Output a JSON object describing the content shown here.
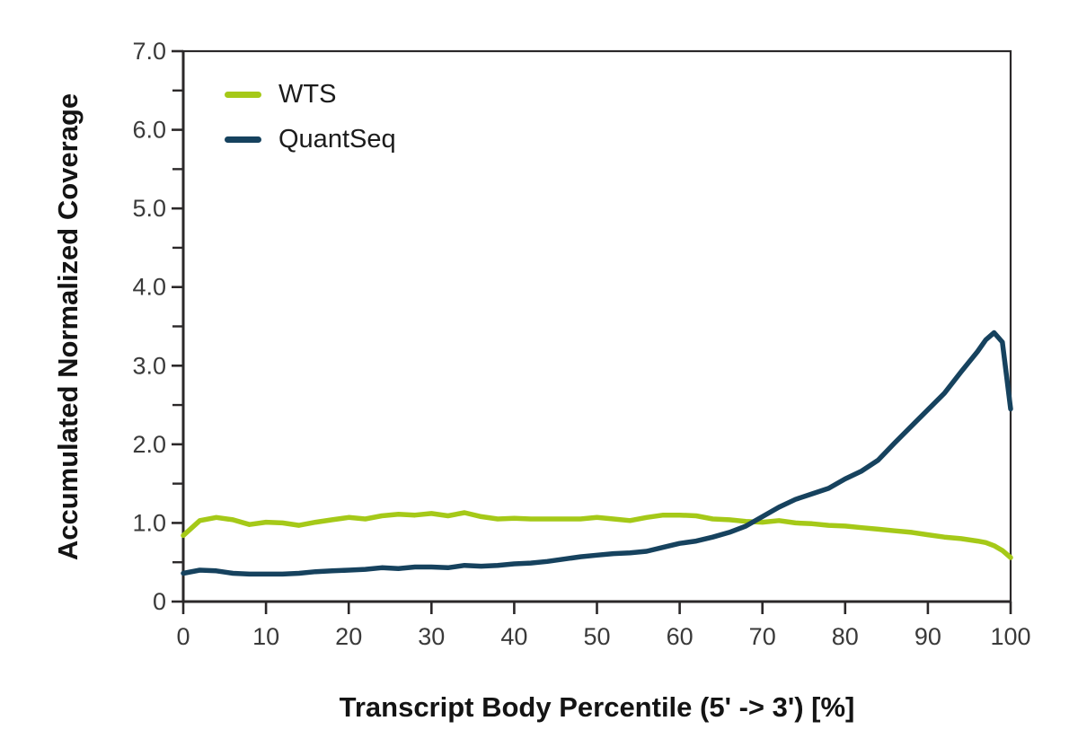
{
  "figure": {
    "background": "#ffffff",
    "axis_color": "#2b2829",
    "tick_label_color": "#3a3a3a",
    "title_color": "#141414"
  },
  "chart_data": {
    "type": "line",
    "title": "",
    "xlabel": "Transcript Body Percentile (5' -> 3') [%]",
    "ylabel": "Accumulated Normalized Coverage",
    "xlim": [
      0,
      100
    ],
    "ylim": [
      0,
      7
    ],
    "grid": false,
    "legend_position": "top-left-inside",
    "x_ticks": [
      0,
      10,
      20,
      30,
      40,
      50,
      60,
      70,
      80,
      90,
      100
    ],
    "y_ticks": [
      {
        "value": 0,
        "label": "0"
      },
      {
        "value": 1,
        "label": "1.0"
      },
      {
        "value": 2,
        "label": "2.0"
      },
      {
        "value": 3,
        "label": "3.0"
      },
      {
        "value": 4,
        "label": "4.0"
      },
      {
        "value": 5,
        "label": "5.0"
      },
      {
        "value": 6,
        "label": "6.0"
      },
      {
        "value": 7,
        "label": "7.0"
      }
    ],
    "y_minor_ticks": [
      0.5,
      1.5,
      2.5,
      3.5,
      4.5,
      5.5,
      6.5
    ],
    "x": [
      0,
      2,
      4,
      6,
      8,
      10,
      12,
      14,
      16,
      18,
      20,
      22,
      24,
      26,
      28,
      30,
      32,
      34,
      36,
      38,
      40,
      42,
      44,
      46,
      48,
      50,
      52,
      54,
      56,
      58,
      60,
      62,
      64,
      66,
      68,
      70,
      72,
      74,
      76,
      78,
      80,
      82,
      84,
      86,
      88,
      90,
      92,
      94,
      96,
      97,
      98,
      99,
      100
    ],
    "series": [
      {
        "name": "WTS",
        "color": "#a5c918",
        "y": [
          0.84,
          1.03,
          1.07,
          1.04,
          0.98,
          1.01,
          1.0,
          0.97,
          1.01,
          1.04,
          1.07,
          1.05,
          1.09,
          1.11,
          1.1,
          1.12,
          1.09,
          1.13,
          1.08,
          1.05,
          1.06,
          1.05,
          1.05,
          1.05,
          1.05,
          1.07,
          1.05,
          1.03,
          1.07,
          1.1,
          1.1,
          1.09,
          1.05,
          1.04,
          1.02,
          1.01,
          1.03,
          1.0,
          0.99,
          0.97,
          0.96,
          0.94,
          0.92,
          0.9,
          0.88,
          0.85,
          0.82,
          0.8,
          0.77,
          0.75,
          0.71,
          0.65,
          0.56
        ]
      },
      {
        "name": "QuantSeq",
        "color": "#16425e",
        "y": [
          0.36,
          0.4,
          0.39,
          0.36,
          0.35,
          0.35,
          0.35,
          0.36,
          0.38,
          0.39,
          0.4,
          0.41,
          0.43,
          0.42,
          0.44,
          0.44,
          0.43,
          0.46,
          0.45,
          0.46,
          0.48,
          0.49,
          0.51,
          0.54,
          0.57,
          0.59,
          0.61,
          0.62,
          0.64,
          0.69,
          0.74,
          0.77,
          0.82,
          0.88,
          0.96,
          1.08,
          1.2,
          1.3,
          1.37,
          1.44,
          1.56,
          1.66,
          1.8,
          2.02,
          2.23,
          2.44,
          2.65,
          2.92,
          3.18,
          3.33,
          3.42,
          3.3,
          2.45
        ]
      }
    ]
  }
}
